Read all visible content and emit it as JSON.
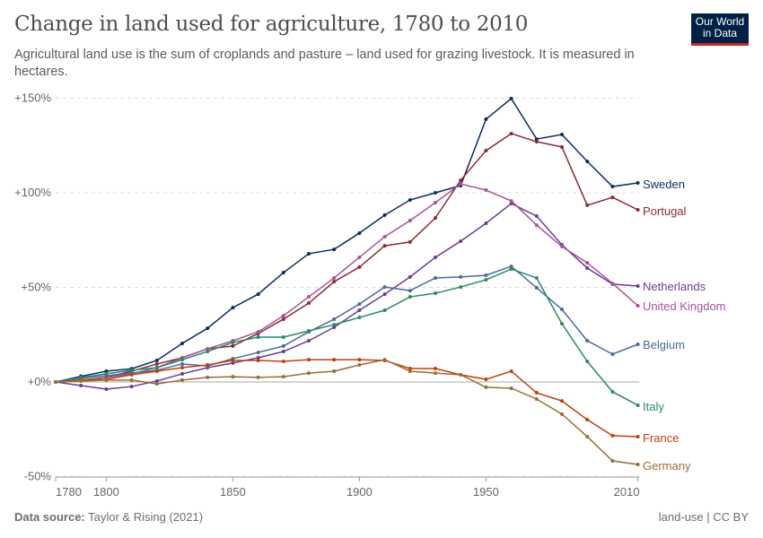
{
  "header": {
    "title": "Change in land used for agriculture, 1780 to 2010",
    "subtitle": "Agricultural land use is the sum of croplands and pasture – land used for grazing livestock. It is measured in hectares."
  },
  "logo": {
    "line1": "Our World",
    "line2": "in Data"
  },
  "footer": {
    "source_label": "Data source:",
    "source": "Taylor & Rising (2021)",
    "license": "land-use | CC BY"
  },
  "chart_data": {
    "type": "line",
    "title": "Change in land used for agriculture, 1780 to 2010",
    "x": [
      1780,
      1790,
      1800,
      1810,
      1820,
      1830,
      1840,
      1850,
      1860,
      1870,
      1880,
      1890,
      1900,
      1910,
      1920,
      1930,
      1940,
      1950,
      1960,
      1970,
      1980,
      1990,
      2000,
      2010
    ],
    "xticks": [
      "1780",
      "1800",
      "1850",
      "1900",
      "1950",
      "2010"
    ],
    "yticks": [
      "-50%",
      "+0%",
      "+50%",
      "+100%",
      "+150%"
    ],
    "ylim": [
      -50,
      150
    ],
    "grid": true,
    "legend": "right-labels",
    "series": [
      {
        "name": "Sweden",
        "color": "#0b2d5e",
        "values": [
          0,
          3,
          5.7,
          7,
          11.4,
          20.4,
          28.4,
          39.3,
          46.4,
          57.8,
          67.8,
          70.1,
          78.7,
          88.2,
          96.2,
          100,
          103.8,
          138.9,
          149.8,
          128.4,
          130.8,
          116.6,
          103.3,
          105.2
        ]
      },
      {
        "name": "Portugal",
        "color": "#8b2a34",
        "values": [
          0,
          1,
          2.4,
          5.7,
          9.5,
          12.8,
          17.5,
          19,
          25.6,
          33.2,
          41.7,
          53,
          60.7,
          72,
          74,
          86.7,
          106.6,
          122.3,
          131.3,
          127,
          124.2,
          93.4,
          97.6,
          91
        ]
      },
      {
        "name": "Netherlands",
        "color": "#6b3d92",
        "values": [
          0,
          -1.9,
          -3.8,
          -2.4,
          0.5,
          4.3,
          7.6,
          10,
          12.8,
          16.1,
          21.8,
          28.9,
          37.9,
          46.4,
          55.5,
          65.9,
          74.4,
          83.9,
          94.3,
          87.7,
          72.5,
          60.2,
          51.7,
          50.7
        ]
      },
      {
        "name": "United Kingdom",
        "color": "#a2559c",
        "values": [
          0,
          1,
          2.4,
          4.3,
          7.6,
          12.8,
          17.5,
          21.8,
          26.5,
          35,
          45,
          55,
          65.9,
          76.8,
          85.3,
          94.8,
          104.7,
          101.4,
          95.7,
          82.9,
          71.6,
          63,
          52.1,
          40.3
        ]
      },
      {
        "name": "Belgium",
        "color": "#4c6a9c",
        "values": [
          0,
          2,
          3.3,
          4.7,
          6.2,
          9.5,
          8.5,
          12.3,
          15.6,
          19,
          26.5,
          33.2,
          41.2,
          50.2,
          48.3,
          55,
          55.5,
          56.4,
          61.1,
          49.8,
          38.4,
          21.8,
          14.7,
          19.9
        ]
      },
      {
        "name": "Italy",
        "color": "#2a8a67",
        "values": [
          0,
          2.4,
          4.3,
          6.2,
          7.6,
          11.8,
          16.1,
          20.9,
          23.7,
          23.7,
          27,
          30.3,
          34.1,
          37.9,
          45,
          46.9,
          50.2,
          54,
          59.7,
          55,
          30.8,
          10.9,
          -5.2,
          -12.3
        ]
      },
      {
        "name": "France",
        "color": "#c0410b",
        "values": [
          0,
          1,
          1.4,
          3.8,
          5.7,
          7.6,
          9,
          11.4,
          11.4,
          10.9,
          11.8,
          11.8,
          11.8,
          11.4,
          7.1,
          7.1,
          3.8,
          1.4,
          5.7,
          -5.7,
          -10,
          -19.9,
          -28.4,
          -28.9
        ]
      },
      {
        "name": "Germany",
        "color": "#9a6d38",
        "values": [
          0,
          0.5,
          1,
          1,
          -1,
          1,
          2.4,
          2.8,
          2.4,
          2.8,
          4.7,
          5.7,
          9,
          11.8,
          5.7,
          4.7,
          3.8,
          -2.8,
          -3.3,
          -9,
          -17,
          -28.9,
          -41.7,
          -43.6
        ]
      }
    ]
  }
}
